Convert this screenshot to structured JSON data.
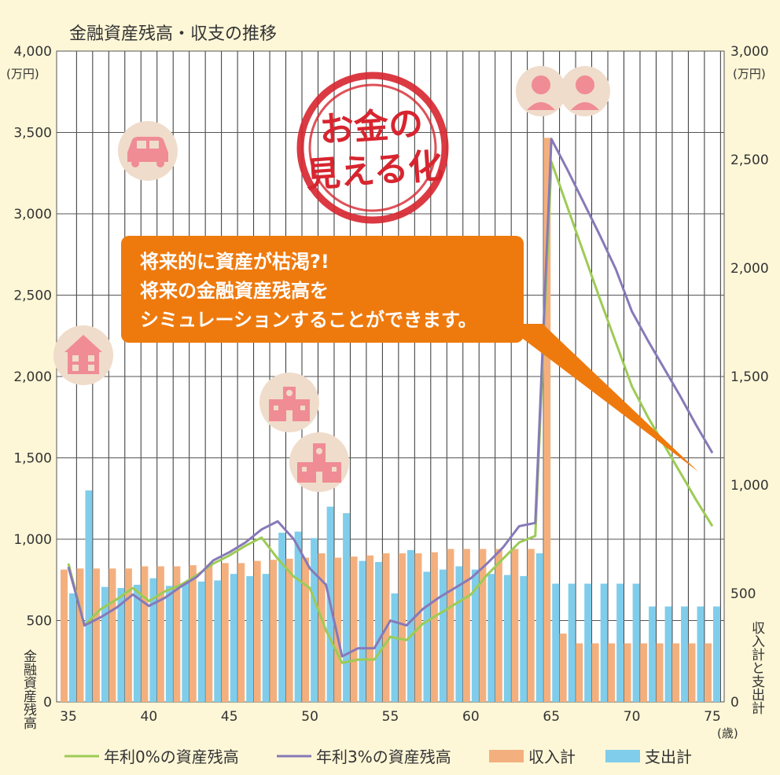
{
  "chart_data": {
    "type": "bar",
    "title": "金融資産残高・収支の推移",
    "x_unit": "(歳)",
    "x_ticks": [
      35,
      40,
      45,
      50,
      55,
      60,
      65,
      70,
      75
    ],
    "ages": [
      35,
      36,
      37,
      38,
      39,
      40,
      41,
      42,
      43,
      44,
      45,
      46,
      47,
      48,
      49,
      50,
      51,
      52,
      53,
      54,
      55,
      56,
      57,
      58,
      59,
      60,
      61,
      62,
      63,
      64,
      65,
      66,
      67,
      68,
      69,
      70,
      71,
      72,
      73,
      74,
      75
    ],
    "left_axis": {
      "label": "金融資産残高",
      "unit": "(万円)",
      "ylim": [
        0,
        4000
      ],
      "ticks": [
        0,
        500,
        1000,
        1500,
        2000,
        2500,
        3000,
        3500,
        4000
      ],
      "tick_labels": [
        "0",
        "500",
        "1,000",
        "1,500",
        "2,000",
        "2,500",
        "3,000",
        "3,500",
        "4,000"
      ]
    },
    "right_axis": {
      "label": "収入計と支出計",
      "unit": "(万円)",
      "ylim": [
        0,
        3000
      ],
      "ticks": [
        0,
        500,
        1000,
        1500,
        2000,
        2500,
        3000
      ],
      "tick_labels": [
        "0",
        "500",
        "1,000",
        "1,500",
        "2,000",
        "2,500",
        "3,000"
      ]
    },
    "series": [
      {
        "name": "年利0%の資産残高",
        "kind": "line",
        "axis": "left",
        "color": "#9dcb55",
        "values": [
          850,
          470,
          570,
          630,
          700,
          620,
          680,
          720,
          780,
          850,
          900,
          960,
          1010,
          880,
          770,
          700,
          440,
          240,
          260,
          260,
          400,
          380,
          480,
          540,
          600,
          660,
          780,
          880,
          980,
          1020,
          3320,
          3040,
          2760,
          2480,
          2210,
          1940,
          1750,
          1580,
          1410,
          1240,
          1080
        ]
      },
      {
        "name": "年利3%の資産残高",
        "kind": "line",
        "axis": "left",
        "color": "#8779b8",
        "values": [
          830,
          470,
          520,
          580,
          660,
          590,
          640,
          710,
          770,
          870,
          920,
          980,
          1060,
          1110,
          1000,
          820,
          720,
          280,
          330,
          330,
          500,
          470,
          570,
          640,
          700,
          760,
          850,
          950,
          1080,
          1100,
          3460,
          3270,
          3070,
          2870,
          2660,
          2400,
          2220,
          2050,
          1880,
          1700,
          1530
        ]
      },
      {
        "name": "収入計",
        "kind": "bar",
        "axis": "right",
        "color": "#f3b07e",
        "values": [
          610,
          615,
          615,
          615,
          615,
          625,
          625,
          625,
          630,
          630,
          640,
          640,
          650,
          655,
          660,
          665,
          685,
          665,
          670,
          675,
          685,
          685,
          685,
          690,
          705,
          705,
          705,
          705,
          705,
          705,
          2600,
          315,
          270,
          270,
          270,
          270,
          270,
          270,
          270,
          270,
          270
        ]
      },
      {
        "name": "支出計",
        "kind": "bar",
        "axis": "right",
        "color": "#7fcdeb",
        "values": [
          500,
          975,
          530,
          525,
          540,
          570,
          535,
          550,
          555,
          560,
          590,
          580,
          590,
          780,
          785,
          755,
          900,
          870,
          650,
          645,
          500,
          700,
          600,
          610,
          625,
          610,
          590,
          585,
          580,
          685,
          545,
          545,
          545,
          545,
          545,
          545,
          440,
          440,
          440,
          440,
          440
        ]
      }
    ],
    "legend_placement": "bottom",
    "grid": true
  },
  "stamp": {
    "line1": "お金の",
    "line2": "見える化",
    "color": "#d7252f"
  },
  "callout": {
    "lines": [
      "将来的に資産が枯渇?!",
      "将来の金融資産残高を",
      "シミュレーションすることができます。"
    ],
    "color": "#ee7a0e"
  },
  "icons": [
    "car-icon",
    "house-icon",
    "school-icon",
    "university-icon",
    "elderly-couple-icon"
  ],
  "icon_color": "#f08c93",
  "icon_bg": "#f0dccb"
}
